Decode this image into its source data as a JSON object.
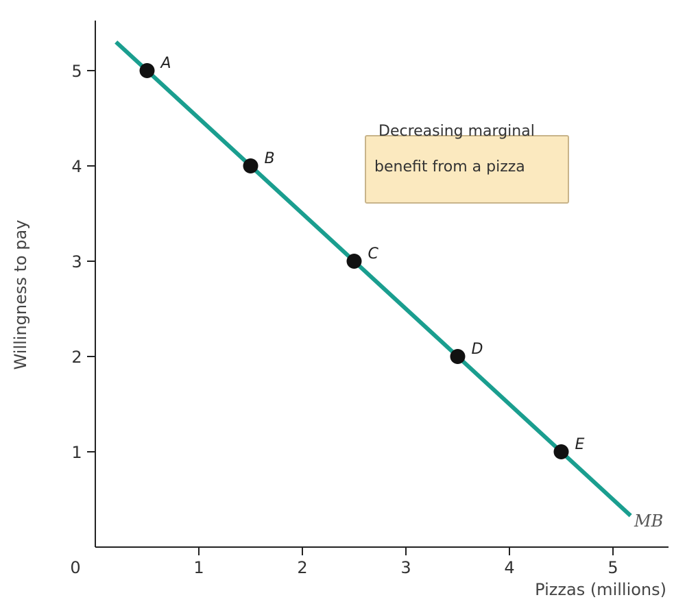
{
  "chart_data": {
    "type": "line",
    "title": "",
    "xlabel": "Pizzas (millions)",
    "ylabel": "Willingness to pay",
    "xlim": [
      0,
      5.6
    ],
    "ylim": [
      0,
      5.5
    ],
    "x_ticks": [
      1,
      2,
      3,
      4,
      5
    ],
    "y_ticks": [
      1,
      2,
      3,
      4,
      5
    ],
    "x_ticks_labels": [
      "1",
      "2",
      "3",
      "4",
      "5"
    ],
    "y_tick_labels": [
      "1",
      "2",
      "3",
      "4",
      "5"
    ],
    "origin_label": "0",
    "grid": false,
    "series": [
      {
        "name": "MB",
        "color": "#1a9e8f",
        "x": [
          0.2,
          5.17
        ],
        "y": [
          5.3,
          0.33
        ]
      }
    ],
    "points": [
      {
        "label": "A",
        "x": 0.5,
        "y": 5
      },
      {
        "label": "B",
        "x": 1.5,
        "y": 4
      },
      {
        "label": "C",
        "x": 2.5,
        "y": 3
      },
      {
        "label": "D",
        "x": 3.5,
        "y": 2
      },
      {
        "label": "E",
        "x": 4.5,
        "y": 1
      }
    ],
    "annotation": {
      "line1": "Decreasing marginal",
      "line2": "benefit from a pizza",
      "fill": "#fbe9bf",
      "stroke": "#c8b48a"
    }
  }
}
